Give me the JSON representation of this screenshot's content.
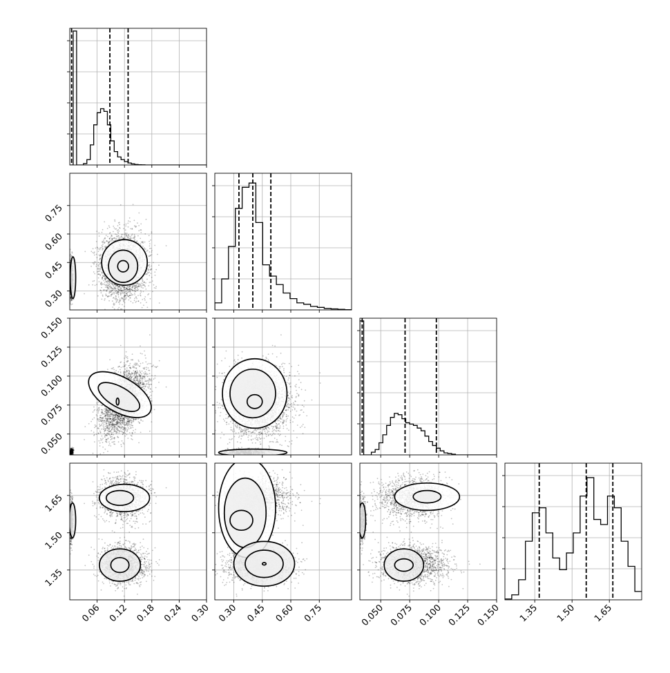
{
  "chart_data": {
    "type": "corner",
    "parameters": 4,
    "axis_ranges": [
      [
        0.0,
        0.3
      ],
      [
        0.2,
        0.92
      ],
      [
        0.032,
        0.15
      ],
      [
        1.23,
        1.78
      ]
    ],
    "ticks": [
      {
        "values": [
          0.06,
          0.12,
          0.18,
          0.24,
          0.3
        ],
        "labels": [
          "0.06",
          "0.12",
          "0.18",
          "0.24",
          "0.30"
        ]
      },
      {
        "values": [
          0.3,
          0.45,
          0.6,
          0.75
        ],
        "labels": [
          "0.30",
          "0.45",
          "0.60",
          "0.75"
        ]
      },
      {
        "values": [
          0.05,
          0.075,
          0.1,
          0.125,
          0.15
        ],
        "labels": [
          "0.050",
          "0.075",
          "0.100",
          "0.125",
          "0.150"
        ]
      },
      {
        "values": [
          1.35,
          1.5,
          1.65
        ],
        "labels": [
          "1.35",
          "1.50",
          "1.65"
        ]
      }
    ],
    "histograms": [
      {
        "bin_start": 0.0,
        "bin_width": 0.0075,
        "ymax": 1.0,
        "quantiles": [
          0.004,
          0.088,
          0.128
        ],
        "values": [
          0.0,
          1.0,
          0.0,
          0.0,
          0.01,
          0.04,
          0.15,
          0.3,
          0.39,
          0.42,
          0.4,
          0.3,
          0.18,
          0.1,
          0.06,
          0.04,
          0.025,
          0.015,
          0.008,
          0.004,
          0.002,
          0.001,
          0.0,
          0.0,
          0.0,
          0.0,
          0.0,
          0.0,
          0.0,
          0.0,
          0.0,
          0.0,
          0.0,
          0.0,
          0.0,
          0.0,
          0.0,
          0.0,
          0.0,
          0.0
        ]
      },
      {
        "bin_start": 0.2,
        "bin_width": 0.036,
        "ymax": 0.95,
        "quantiles": [
          0.327,
          0.4,
          0.495
        ],
        "values": [
          0.05,
          0.22,
          0.45,
          0.72,
          0.87,
          0.9,
          0.62,
          0.32,
          0.24,
          0.18,
          0.12,
          0.08,
          0.05,
          0.04,
          0.025,
          0.018,
          0.01,
          0.007,
          0.004,
          0.002
        ]
      },
      {
        "bin_start": 0.032,
        "bin_width": 0.0033,
        "ymax": 1.0,
        "quantiles": [
          0.034,
          0.071,
          0.098
        ],
        "values": [
          1.0,
          0.0,
          0.0,
          0.02,
          0.04,
          0.09,
          0.15,
          0.22,
          0.28,
          0.31,
          0.3,
          0.27,
          0.24,
          0.23,
          0.22,
          0.2,
          0.18,
          0.14,
          0.1,
          0.07,
          0.05,
          0.03,
          0.015,
          0.01,
          0.005,
          0.0,
          0.0,
          0.0,
          0.0,
          0.0,
          0.0,
          0.0,
          0.0,
          0.0,
          0.0,
          0.0
        ]
      },
      {
        "bin_start": 1.23,
        "bin_width": 0.0275,
        "ymax": 0.8,
        "quantiles": [
          1.368,
          1.557,
          1.664
        ],
        "values": [
          0.005,
          0.03,
          0.12,
          0.35,
          0.52,
          0.55,
          0.4,
          0.25,
          0.18,
          0.28,
          0.4,
          0.62,
          0.73,
          0.48,
          0.45,
          0.62,
          0.55,
          0.35,
          0.2,
          0.05
        ]
      }
    ],
    "density_modes": [
      {
        "weight": 0.8,
        "mean": [
          0.117,
          0.43,
          0.078,
          1.55
        ],
        "sd": [
          0.025,
          0.085,
          0.013,
          0.11
        ]
      },
      {
        "weight": 0.2,
        "mean": [
          0.003,
          0.36,
          0.034,
          1.55
        ],
        "sd": [
          0.002,
          0.05,
          0.0015,
          0.02
        ]
      }
    ],
    "contours": {
      "1_0": [
        {
          "x": 0.117,
          "y": 0.43,
          "rx": 0.012,
          "ry": 0.03,
          "r": 0
        },
        {
          "x": 0.117,
          "y": 0.43,
          "rx": 0.032,
          "ry": 0.085,
          "r": 0
        },
        {
          "x": 0.12,
          "y": 0.45,
          "rx": 0.05,
          "ry": 0.12,
          "r": 0
        },
        {
          "x": 0.007,
          "y": 0.37,
          "rx": 0.006,
          "ry": 0.11,
          "r": 0
        }
      ],
      "2_0": [
        {
          "x": 0.105,
          "y": 0.078,
          "rx": 0.003,
          "ry": 0.003,
          "r": 0
        },
        {
          "x": 0.108,
          "y": 0.082,
          "rx": 0.022,
          "ry": 0.02,
          "r": -60
        },
        {
          "x": 0.11,
          "y": 0.084,
          "rx": 0.038,
          "ry": 0.03,
          "r": -60
        }
      ],
      "2_1": [
        {
          "x": 0.41,
          "y": 0.078,
          "rx": 0.04,
          "ry": 0.006,
          "r": 0
        },
        {
          "x": 0.4,
          "y": 0.085,
          "rx": 0.12,
          "ry": 0.021,
          "r": 0
        },
        {
          "x": 0.41,
          "y": 0.085,
          "rx": 0.17,
          "ry": 0.03,
          "r": 0
        },
        {
          "x": 0.4,
          "y": 0.034,
          "rx": 0.18,
          "ry": 0.003,
          "r": 0
        }
      ],
      "3_0": [
        {
          "x": 0.11,
          "y": 1.64,
          "rx": 0.03,
          "ry": 0.03,
          "r": 0
        },
        {
          "x": 0.12,
          "y": 1.64,
          "rx": 0.055,
          "ry": 0.055,
          "r": 0
        },
        {
          "x": 0.11,
          "y": 1.37,
          "rx": 0.02,
          "ry": 0.03,
          "r": 0
        },
        {
          "x": 0.11,
          "y": 1.37,
          "rx": 0.045,
          "ry": 0.065,
          "r": 0
        },
        {
          "x": 0.006,
          "y": 1.55,
          "rx": 0.007,
          "ry": 0.07,
          "r": 0
        }
      ],
      "3_1": [
        {
          "x": 0.34,
          "y": 1.55,
          "rx": 0.06,
          "ry": 0.04,
          "r": 0
        },
        {
          "x": 0.36,
          "y": 1.58,
          "rx": 0.11,
          "ry": 0.14,
          "r": 0
        },
        {
          "x": 0.37,
          "y": 1.6,
          "rx": 0.15,
          "ry": 0.2,
          "r": 0
        },
        {
          "x": 0.46,
          "y": 1.375,
          "rx": 0.01,
          "ry": 0.005,
          "r": 0
        },
        {
          "x": 0.46,
          "y": 1.375,
          "rx": 0.1,
          "ry": 0.055,
          "r": 0
        },
        {
          "x": 0.46,
          "y": 1.375,
          "rx": 0.16,
          "ry": 0.09,
          "r": 0
        }
      ],
      "3_2": [
        {
          "x": 0.09,
          "y": 1.645,
          "rx": 0.012,
          "ry": 0.025,
          "r": 0
        },
        {
          "x": 0.09,
          "y": 1.645,
          "rx": 0.028,
          "ry": 0.055,
          "r": 0
        },
        {
          "x": 0.07,
          "y": 1.37,
          "rx": 0.008,
          "ry": 0.025,
          "r": 0
        },
        {
          "x": 0.07,
          "y": 1.37,
          "rx": 0.017,
          "ry": 0.065,
          "r": 0
        },
        {
          "x": 0.034,
          "y": 1.55,
          "rx": 0.003,
          "ry": 0.07,
          "r": 0
        }
      ]
    },
    "grid": true,
    "legend": "none"
  }
}
